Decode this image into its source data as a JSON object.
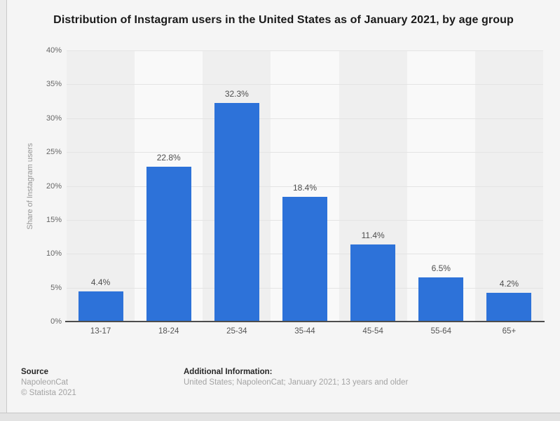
{
  "page": {
    "title": "Distribution of Instagram users in the United States as of January 2021, by age group"
  },
  "chart_data": {
    "type": "bar",
    "title": "Distribution of Instagram users in the United States as of January 2021, by age group",
    "categories": [
      "13-17",
      "18-24",
      "25-34",
      "35-44",
      "45-54",
      "55-64",
      "65+"
    ],
    "values": [
      4.4,
      22.8,
      32.3,
      18.4,
      11.4,
      6.5,
      4.2
    ],
    "value_labels": [
      "4.4%",
      "22.8%",
      "32.3%",
      "18.4%",
      "11.4%",
      "6.5%",
      "4.2%"
    ],
    "xlabel": "",
    "ylabel": "Share of Instagram users",
    "ylim": [
      0,
      40
    ],
    "ytick_step": 5,
    "ytick_suffix": "%",
    "grid": true,
    "legend": "none",
    "bar_color": "#2d72d9",
    "stripe_colors": [
      "#efefef",
      "#f9f9f9"
    ]
  },
  "footer": {
    "source_label": "Source",
    "source_value": "NapoleonCat",
    "copyright": "© Statista 2021",
    "additional_label": "Additional Information:",
    "additional_value": "United States; NapoleonCat; January 2021; 13 years and older"
  }
}
